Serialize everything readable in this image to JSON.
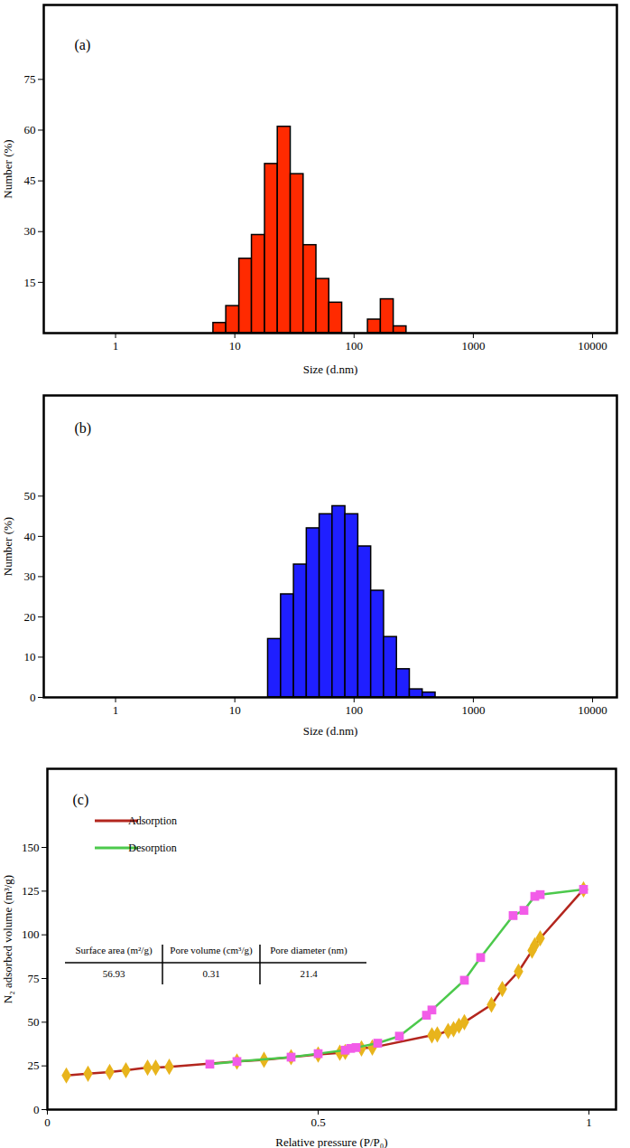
{
  "chart_data": [
    {
      "type": "histogram",
      "title": "(a)",
      "x_label": "Size (d.nm)",
      "y_label": "Number (%)",
      "bins": [
        6.61,
        8.47,
        10.9,
        13.9,
        17.9,
        22.9,
        29.4,
        37.7,
        48.3,
        61.9,
        79.4,
        101.9,
        130.6,
        167.5,
        214.8,
        275
      ],
      "counts": [
        3,
        8,
        22,
        29,
        50,
        61,
        47,
        26,
        16,
        9,
        0,
        0,
        4,
        10,
        2
      ],
      "color": "#ff2a00",
      "log": "x",
      "xlim": [
        0.25,
        16000
      ],
      "xticks": [
        1,
        10,
        100,
        1000,
        10000
      ],
      "ylim": [
        0,
        97
      ],
      "yticks": [
        15,
        30,
        45,
        60,
        75
      ],
      "grid": false
    },
    {
      "type": "histogram",
      "title": "(b)",
      "x_label": "Size (d.nm)",
      "y_label": "Number (%)",
      "bins": [
        19.0,
        24.4,
        31.3,
        40.1,
        51.4,
        65.9,
        84.5,
        108.4,
        139.0,
        178.2,
        228.6,
        293.1,
        375.8,
        482.0
      ],
      "counts": [
        14.5,
        25.6,
        33,
        42,
        45.5,
        47.5,
        45.5,
        37.5,
        26.5,
        15,
        7,
        2,
        1.2
      ],
      "color": "#1f1fff",
      "log": "x",
      "xlim": [
        0.25,
        16000
      ],
      "xticks": [
        1,
        10,
        100,
        1000,
        10000
      ],
      "ylim": [
        0,
        75
      ],
      "yticks": [
        0,
        10,
        20,
        30,
        40,
        50
      ],
      "grid": false
    },
    {
      "type": "line",
      "title": "(c)",
      "x_label": "Relative pressure (P/P₀)",
      "y_label": "N₂ adsorbed volume (m³/g)",
      "xlim": [
        0,
        1.05
      ],
      "xticks": [
        0,
        0.5,
        1
      ],
      "ylim": [
        0,
        195
      ],
      "yticks": [
        0,
        25,
        50,
        75,
        100,
        125,
        150
      ],
      "grid": false,
      "legend": "top-left",
      "series": [
        {
          "name": "Adsorption",
          "color": "#b3261e",
          "marker": "diamond",
          "line_style": "solid",
          "x": [
            0.035,
            0.075,
            0.115,
            0.145,
            0.185,
            0.2,
            0.225,
            0.35,
            0.4,
            0.45,
            0.5,
            0.54,
            0.55,
            0.58,
            0.6,
            0.71,
            0.72,
            0.74,
            0.75,
            0.76,
            0.77,
            0.82,
            0.84,
            0.87,
            0.895,
            0.9,
            0.91,
            0.99
          ],
          "values": [
            19.5,
            20.5,
            21.5,
            22.5,
            24,
            24,
            24.5,
            27.5,
            28.5,
            30,
            31.5,
            32.5,
            33,
            35,
            35.5,
            42.5,
            43,
            45,
            46,
            48,
            50,
            60,
            69,
            79,
            91,
            94,
            98,
            126
          ]
        },
        {
          "name": "Desorption",
          "color": "#4cc94c",
          "marker": "square",
          "line_style": "solid",
          "x": [
            0.3,
            0.35,
            0.45,
            0.5,
            0.55,
            0.56,
            0.57,
            0.61,
            0.65,
            0.7,
            0.71,
            0.77,
            0.8,
            0.86,
            0.88,
            0.9,
            0.91,
            0.99
          ],
          "values": [
            26,
            27.5,
            30,
            32,
            34,
            35,
            35.5,
            38,
            42,
            54,
            57,
            74,
            87,
            111,
            114,
            122,
            123,
            126
          ]
        }
      ],
      "table": {
        "columns": [
          "Surface area (m²/g)",
          "Pore volume (cm³/g)",
          "Pore diameter (nm)"
        ],
        "rows": [
          [
            56.93,
            0.31,
            21.4
          ]
        ]
      }
    }
  ]
}
